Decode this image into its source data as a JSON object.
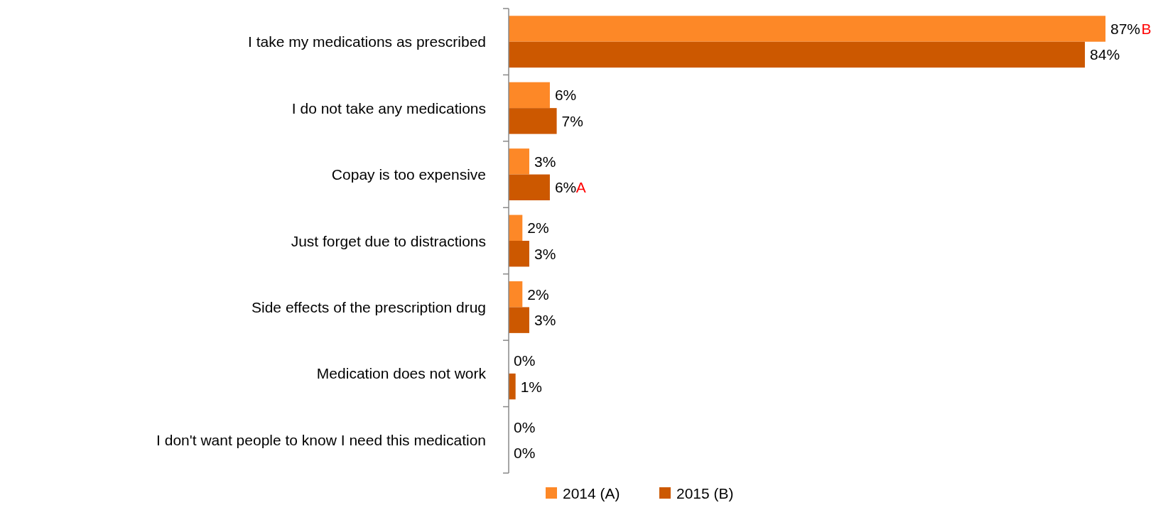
{
  "chart_data": {
    "type": "bar",
    "orientation": "horizontal",
    "categories": [
      "I take my medications as prescribed",
      "I do not take any medications",
      "Copay is too expensive",
      "Just forget due to distractions",
      "Side effects of the prescription drug",
      "Medication does not work",
      "I don't want people to know I need this medication"
    ],
    "series": [
      {
        "name": "2014 (A)",
        "color": "#fd8827",
        "values": [
          87,
          6,
          3,
          2,
          2,
          0,
          0
        ],
        "value_labels": [
          "87%",
          "6%",
          "3%",
          "2%",
          "2%",
          "0%",
          "0%"
        ]
      },
      {
        "name": "2015 (B)",
        "color": "#cc5800",
        "values": [
          84,
          7,
          6,
          3,
          3,
          1,
          0
        ],
        "value_labels": [
          "84%",
          "7%",
          "6%",
          "3%",
          "3%",
          "1%",
          "0%"
        ]
      }
    ],
    "annotations": [
      {
        "text": "B",
        "x": 87,
        "y": "I take my medications as prescribed"
      },
      {
        "text": "A",
        "x": 6,
        "y": "Copay is too expensive"
      }
    ],
    "legend": "bottom"
  }
}
